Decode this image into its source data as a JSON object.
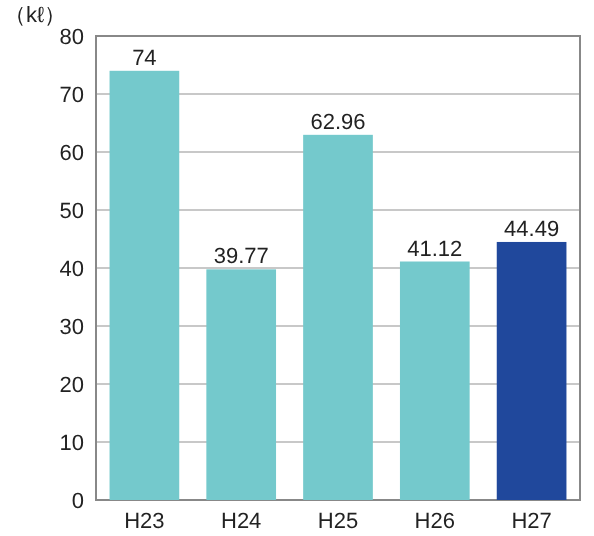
{
  "chart_data": {
    "type": "bar",
    "ylabel": "（kℓ）",
    "categories": [
      "H23",
      "H24",
      "H25",
      "H26",
      "H27"
    ],
    "values": [
      74,
      39.77,
      62.96,
      41.12,
      44.49
    ],
    "colors": [
      "#74c9cc",
      "#74c9cc",
      "#74c9cc",
      "#74c9cc",
      "#20489c"
    ],
    "data_labels": true,
    "ylim": [
      0,
      80
    ],
    "yticks": [
      0,
      10,
      20,
      30,
      40,
      50,
      60,
      70,
      80
    ],
    "grid": "y"
  }
}
